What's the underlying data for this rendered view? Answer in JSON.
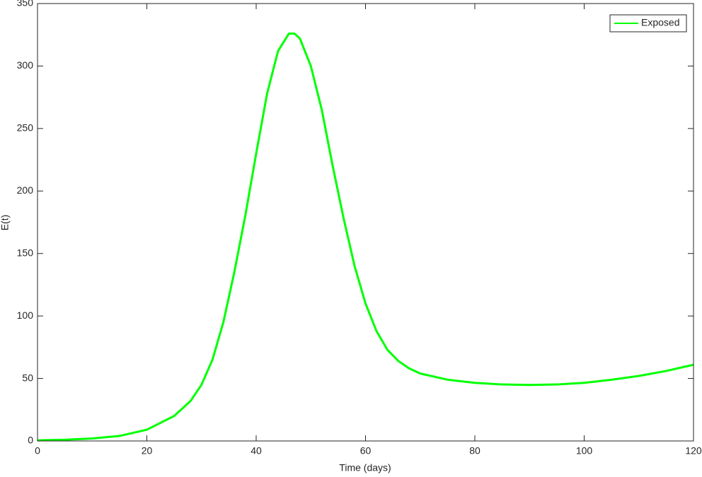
{
  "chart_data": {
    "type": "line",
    "xlabel": "Time (days)",
    "ylabel": "E(t)",
    "x": [
      0,
      5,
      10,
      15,
      20,
      25,
      28,
      30,
      32,
      34,
      36,
      38,
      40,
      42,
      44,
      46,
      47,
      48,
      50,
      52,
      54,
      56,
      58,
      60,
      62,
      64,
      66,
      68,
      70,
      75,
      80,
      85,
      90,
      95,
      100,
      105,
      110,
      115,
      120
    ],
    "series": [
      {
        "name": "Exposed",
        "color": "#00ff00",
        "values": [
          0.5,
          1,
          2,
          4,
          9,
          20,
          32,
          45,
          65,
          95,
          135,
          180,
          230,
          278,
          312,
          326,
          326,
          322,
          300,
          265,
          220,
          178,
          140,
          110,
          88,
          73,
          64,
          58,
          54,
          49,
          46.5,
          45.2,
          44.8,
          45.2,
          46.5,
          49,
          52,
          56,
          61
        ]
      }
    ],
    "xlim": [
      0,
      120
    ],
    "xticks": [
      0,
      20,
      40,
      60,
      80,
      100,
      120
    ],
    "ylim": [
      0,
      350
    ],
    "yticks": [
      0,
      50,
      100,
      150,
      200,
      250,
      300,
      350
    ],
    "legend": "upper right",
    "grid": false
  }
}
